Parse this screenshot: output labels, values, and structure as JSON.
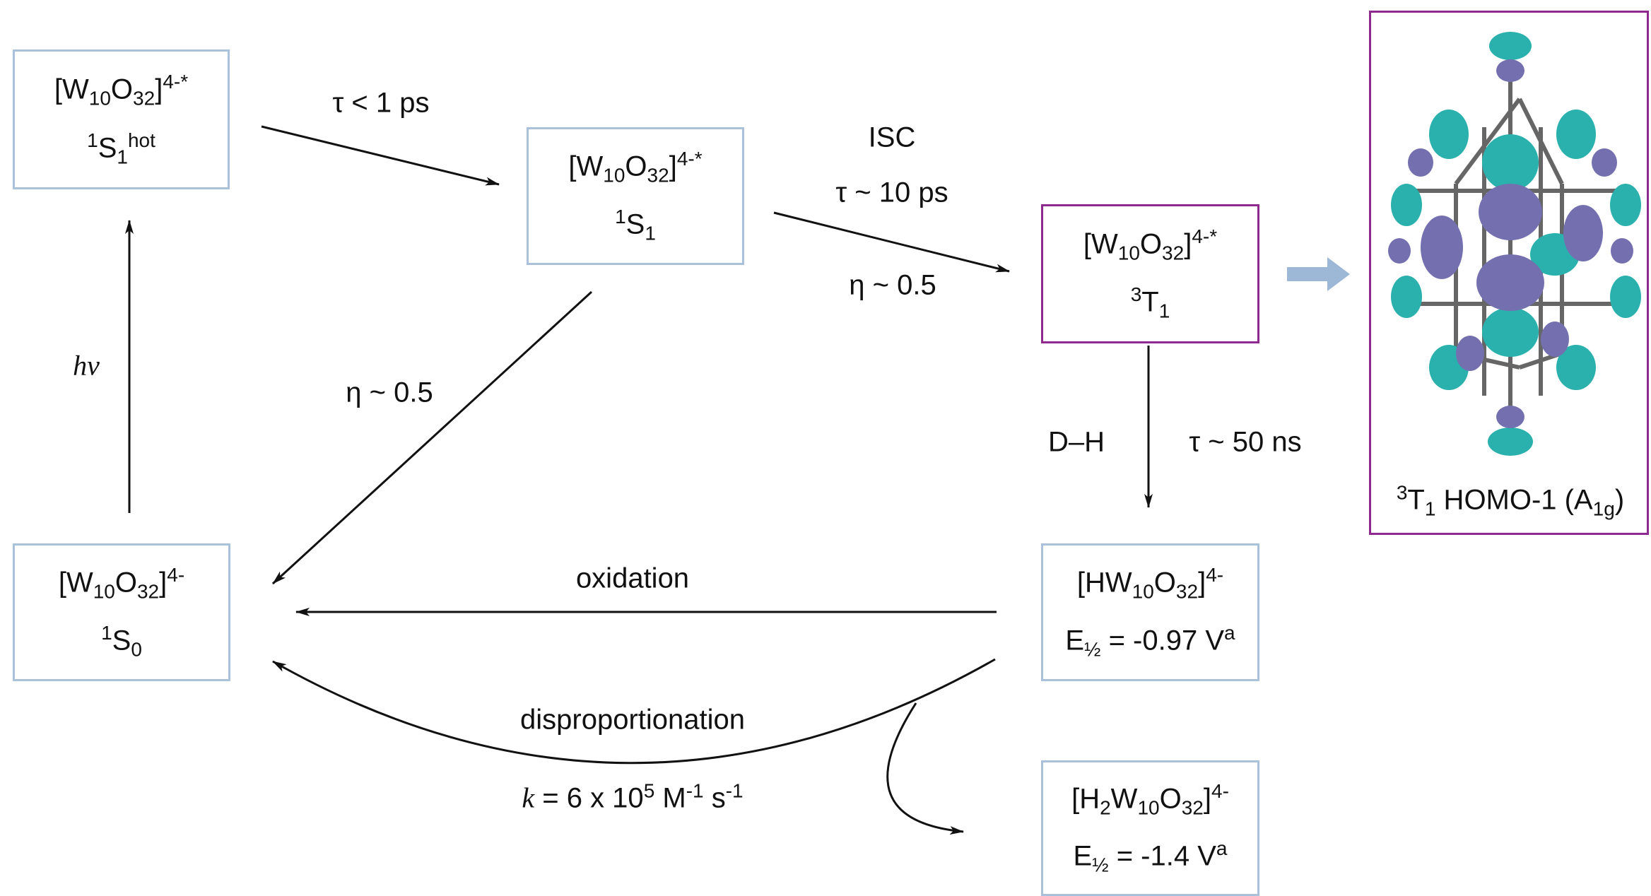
{
  "nodes": [
    {
      "border_color": "#a9c1da",
      "lines": [
        [
          {
            "text": "[W"
          },
          {
            "sub": "10"
          },
          {
            "text": "O"
          },
          {
            "sub": "32"
          },
          {
            "text": "]"
          },
          {
            "sup": "4-*"
          }
        ],
        [
          {
            "sup": "1"
          },
          {
            "text": "S"
          },
          {
            "sub": "1"
          },
          {
            "sup": "hot"
          }
        ]
      ]
    },
    {
      "border_color": "#a9c1da",
      "lines": [
        [
          {
            "text": "[W"
          },
          {
            "sub": "10"
          },
          {
            "text": "O"
          },
          {
            "sub": "32"
          },
          {
            "text": "]"
          },
          {
            "sup": "4-*"
          }
        ],
        [
          {
            "sup": "1"
          },
          {
            "text": "S"
          },
          {
            "sub": "1"
          }
        ]
      ]
    },
    {
      "border_color": "#8e2a8e",
      "lines": [
        [
          {
            "text": "[W"
          },
          {
            "sub": "10"
          },
          {
            "text": "O"
          },
          {
            "sub": "32"
          },
          {
            "text": "]"
          },
          {
            "sup": "4-*"
          }
        ],
        [
          {
            "sup": "3"
          },
          {
            "text": "T"
          },
          {
            "sub": "1"
          }
        ]
      ]
    },
    {
      "border_color": "#a9c1da",
      "lines": [
        [
          {
            "text": "[W"
          },
          {
            "sub": "10"
          },
          {
            "text": "O"
          },
          {
            "sub": "32"
          },
          {
            "text": "]"
          },
          {
            "sup": "4-"
          }
        ],
        [
          {
            "sup": "1"
          },
          {
            "text": "S"
          },
          {
            "sub": "0"
          }
        ]
      ]
    },
    {
      "border_color": "#a9c1da",
      "lines": [
        [
          {
            "text": "[HW"
          },
          {
            "sub": "10"
          },
          {
            "text": "O"
          },
          {
            "sub": "32"
          },
          {
            "text": "]"
          },
          {
            "sup": "4-"
          }
        ],
        [
          {
            "text": "E"
          },
          {
            "sub": "½"
          },
          {
            "text": " = -0.97 V"
          },
          {
            "sup": "a"
          }
        ]
      ]
    },
    {
      "border_color": "#a9c1da",
      "lines": [
        [
          {
            "text": "[H"
          },
          {
            "sub": "2"
          },
          {
            "text": "W"
          },
          {
            "sub": "10"
          },
          {
            "text": "O"
          },
          {
            "sub": "32"
          },
          {
            "text": "]"
          },
          {
            "sup": "4-"
          }
        ],
        [
          {
            "text": "E"
          },
          {
            "sub": "½"
          },
          {
            "text": " = -1.4 V"
          },
          {
            "sup": "a"
          }
        ]
      ]
    }
  ],
  "labels": [
    [
      {
        "text": "τ < 1 ps"
      }
    ],
    [
      {
        "text": "ISC"
      }
    ],
    [
      {
        "text": "τ ~ 10 ps"
      }
    ],
    [
      {
        "text": "η ~ 0.5"
      }
    ],
    [
      {
        "text": "η ~ 0.5"
      }
    ],
    [
      {
        "italic": "hν"
      }
    ],
    [
      {
        "text": "D–H"
      }
    ],
    [
      {
        "text": "τ ~ 50 ns"
      }
    ],
    [
      {
        "text": "oxidation"
      }
    ],
    [
      {
        "text": "disproportionation"
      }
    ],
    [
      {
        "italic": "k"
      },
      {
        "text": " = 6 x 10"
      },
      {
        "sup": "5"
      },
      {
        "text": " M"
      },
      {
        "sup": "-1"
      },
      {
        "text": " s"
      },
      {
        "sup": "-1"
      }
    ],
    [
      {
        "sup": "3"
      },
      {
        "text": "T"
      },
      {
        "sub": "1"
      },
      {
        "text": " HOMO-1 (A"
      },
      {
        "sub": "1g"
      },
      {
        "text": ")"
      }
    ]
  ],
  "orbital_box_color": "#8e2a8e"
}
